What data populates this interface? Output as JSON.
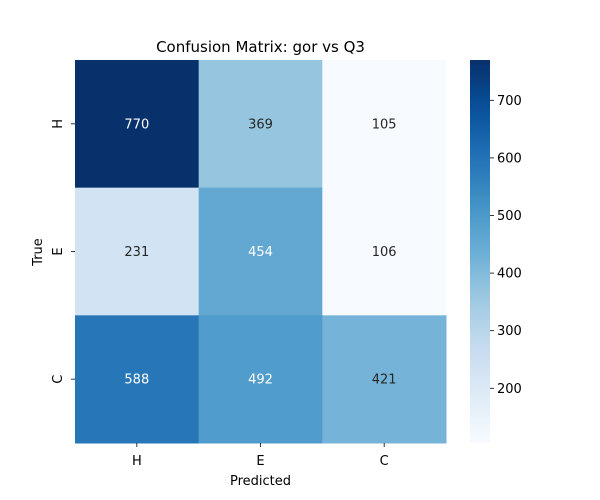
{
  "chart_data": {
    "type": "heatmap",
    "title": "Confusion Matrix: gor vs Q3",
    "xlabel": "Predicted",
    "ylabel": "True",
    "x_categories": [
      "H",
      "E",
      "C"
    ],
    "y_categories": [
      "H",
      "E",
      "C"
    ],
    "values": [
      [
        770,
        369,
        105
      ],
      [
        231,
        454,
        106
      ],
      [
        588,
        492,
        421
      ]
    ],
    "colormap": "Blues",
    "colorbar": {
      "min": 105,
      "max": 770,
      "ticks": [
        200,
        300,
        400,
        500,
        600,
        700
      ]
    }
  }
}
